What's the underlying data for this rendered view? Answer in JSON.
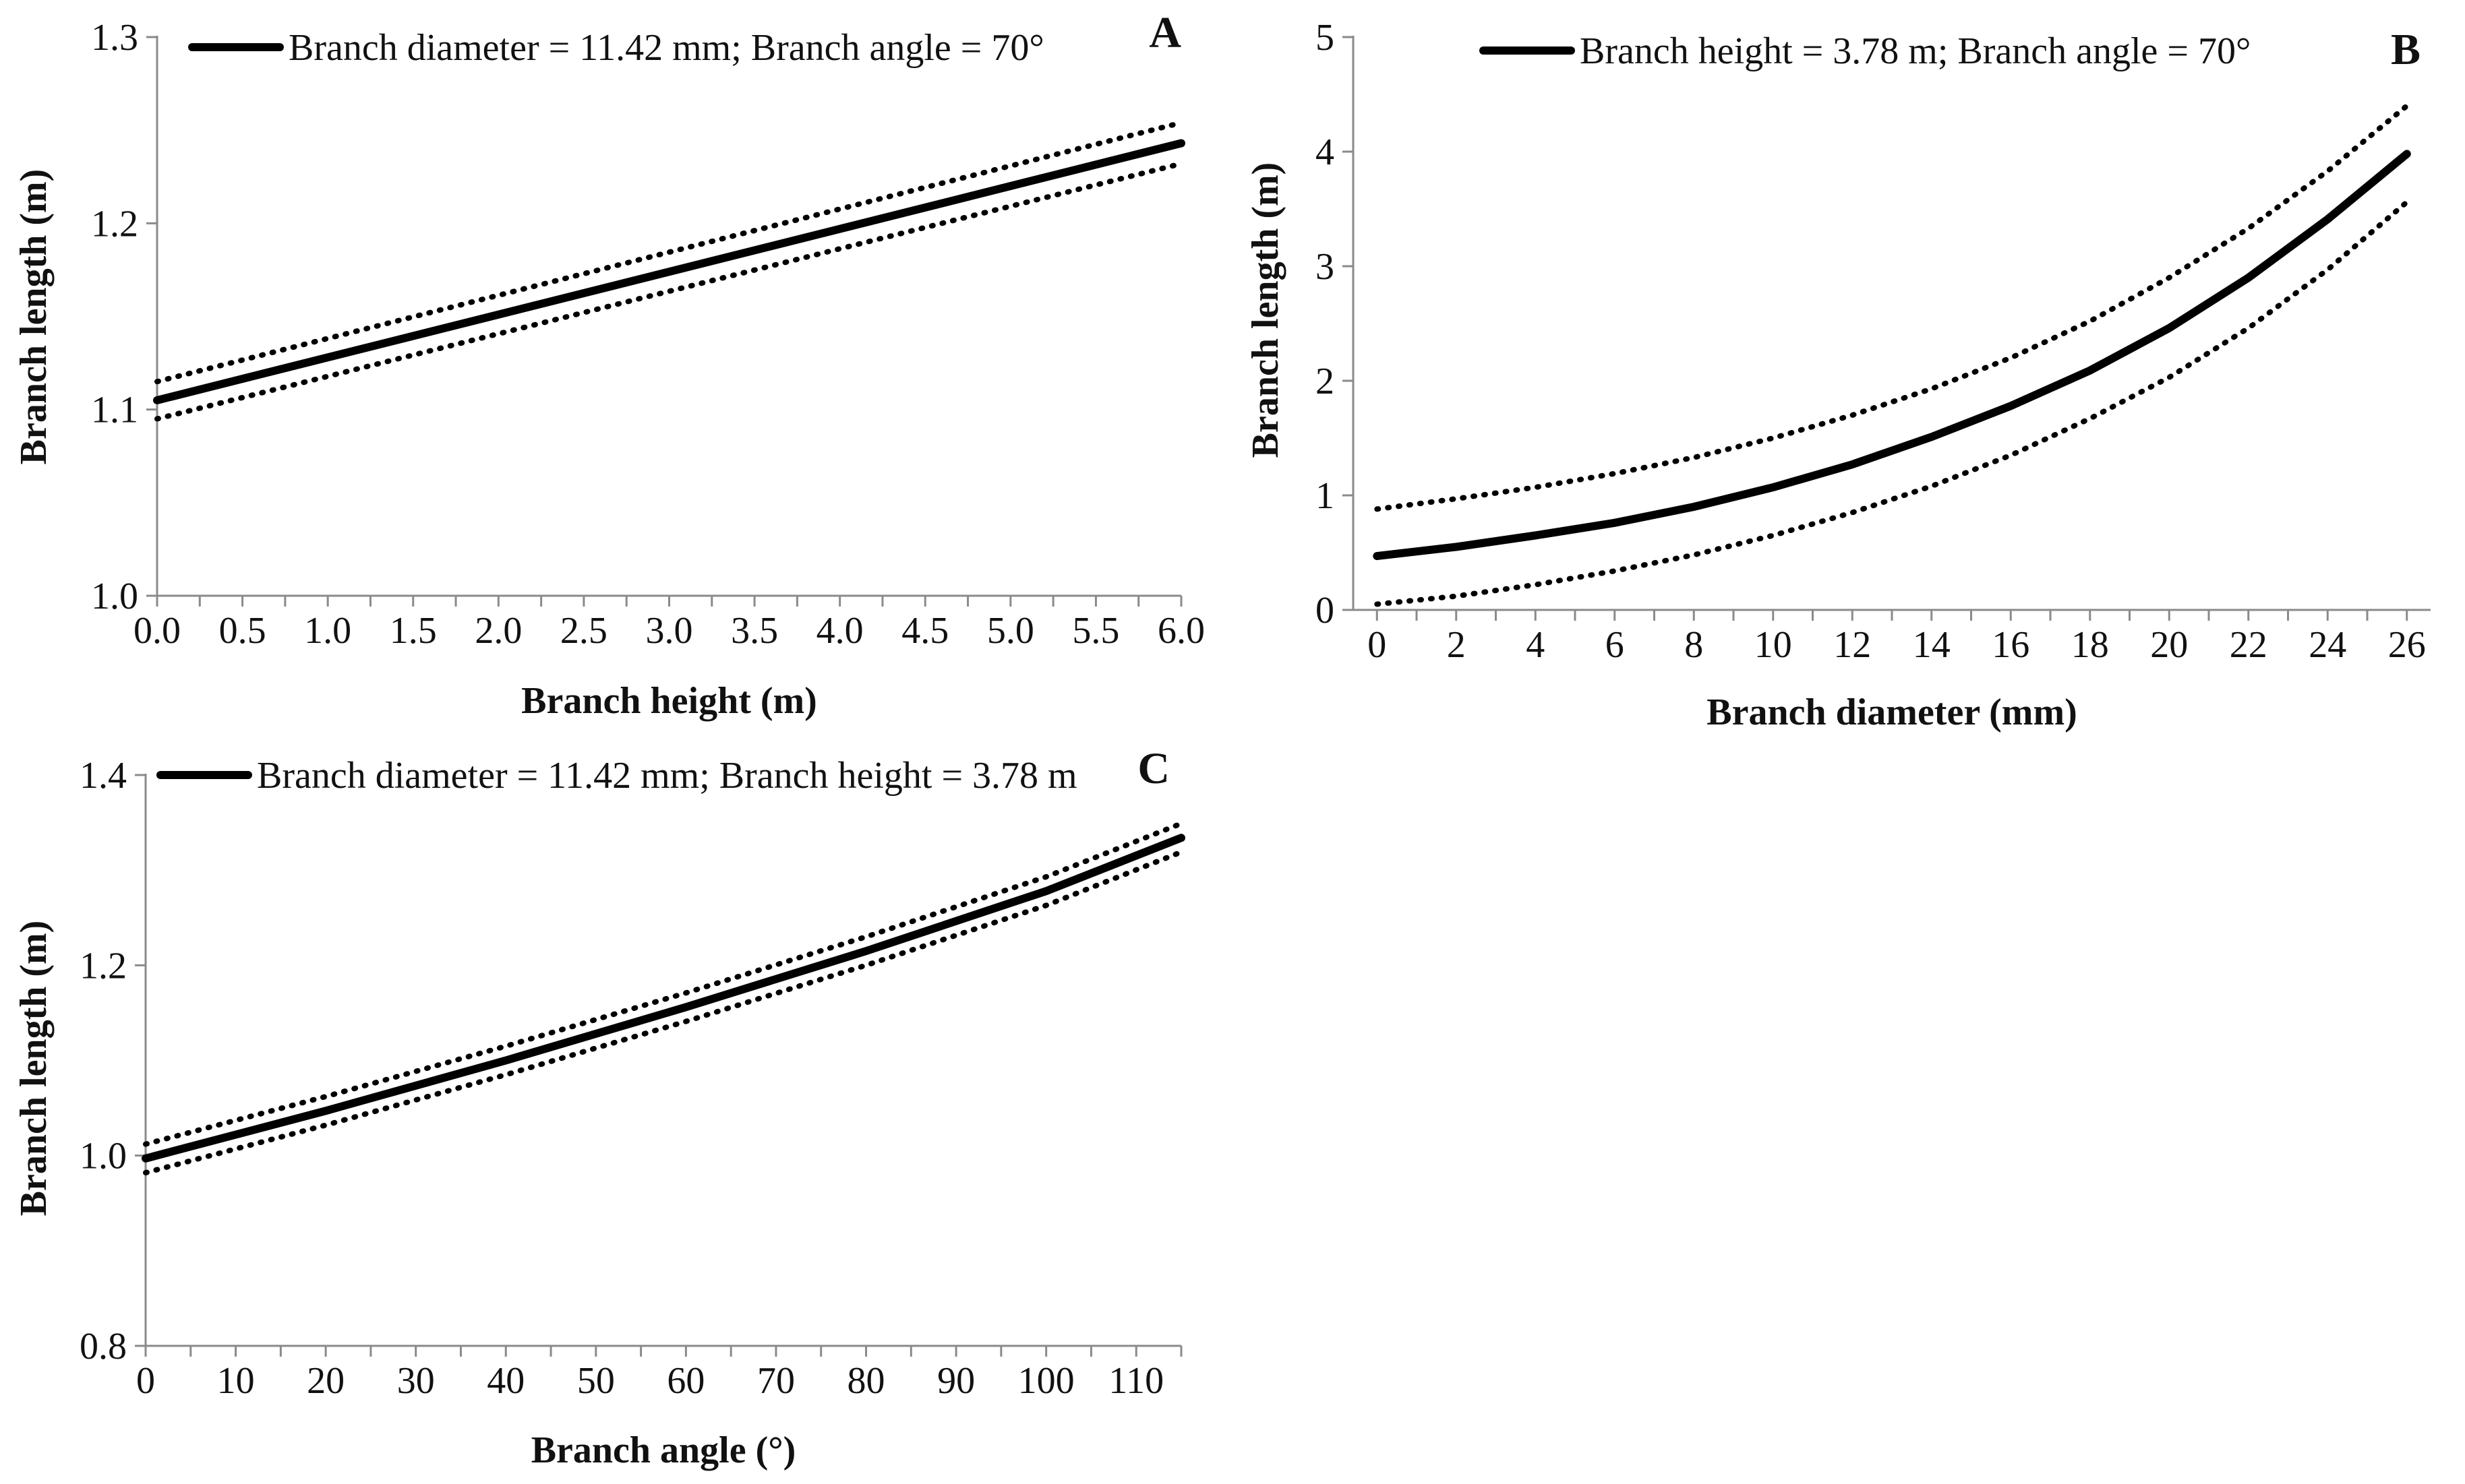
{
  "chart_data": [
    {
      "type": "line",
      "panel": "A",
      "legend": "Branch diameter = 11.42 mm; Branch angle = 70°",
      "xlabel": "Branch height (m)",
      "ylabel": "Branch length (m)",
      "xlim": [
        0,
        6
      ],
      "ylim": [
        1.0,
        1.3
      ],
      "xticks": [
        "0.0",
        "0.5",
        "1.0",
        "1.5",
        "2.0",
        "2.5",
        "3.0",
        "3.5",
        "4.0",
        "4.5",
        "5.0",
        "5.5",
        "6.0"
      ],
      "xtick_values": [
        0,
        0.5,
        1,
        1.5,
        2,
        2.5,
        3,
        3.5,
        4,
        4.5,
        5,
        5.5,
        6
      ],
      "minor_x_step": 0.25,
      "yticks": [
        "1.0",
        "1.1",
        "1.2",
        "1.3"
      ],
      "ytick_values": [
        1.0,
        1.1,
        1.2,
        1.3
      ],
      "series": [
        {
          "name": "prediction",
          "style": "solid",
          "x": [
            0,
            6
          ],
          "y": [
            1.105,
            1.243
          ]
        },
        {
          "name": "upper CI",
          "style": "dotted",
          "x": [
            0,
            6
          ],
          "y": [
            1.115,
            1.254
          ]
        },
        {
          "name": "lower CI",
          "style": "dotted",
          "x": [
            0,
            6
          ],
          "y": [
            1.095,
            1.232
          ]
        }
      ]
    },
    {
      "type": "line",
      "panel": "B",
      "legend": "Branch height = 3.78 m; Branch angle = 70°",
      "xlabel": "Branch diameter (mm)",
      "ylabel": "Branch length (m)",
      "xlim": [
        -0.6,
        26.6
      ],
      "ylim": [
        0,
        5
      ],
      "xticks": [
        "0",
        "2",
        "4",
        "6",
        "8",
        "10",
        "12",
        "14",
        "16",
        "18",
        "20",
        "22",
        "24",
        "26"
      ],
      "xtick_values": [
        0,
        2,
        4,
        6,
        8,
        10,
        12,
        14,
        16,
        18,
        20,
        22,
        24,
        26
      ],
      "minor_x_step": 1,
      "yticks": [
        "0",
        "1",
        "2",
        "3",
        "4",
        "5"
      ],
      "ytick_values": [
        0,
        1,
        2,
        3,
        4,
        5
      ],
      "series": [
        {
          "name": "prediction",
          "style": "solid",
          "x": [
            0,
            2,
            4,
            6,
            8,
            10,
            12,
            14,
            16,
            18,
            20,
            22,
            24,
            26
          ],
          "y": [
            0.47,
            0.55,
            0.65,
            0.76,
            0.9,
            1.07,
            1.27,
            1.51,
            1.78,
            2.09,
            2.46,
            2.9,
            3.41,
            3.98
          ]
        },
        {
          "name": "upper CI",
          "style": "dotted",
          "x": [
            0,
            2,
            4,
            6,
            8,
            10,
            12,
            14,
            16,
            18,
            20,
            22,
            24,
            26
          ],
          "y": [
            0.88,
            0.97,
            1.07,
            1.19,
            1.33,
            1.5,
            1.7,
            1.93,
            2.2,
            2.52,
            2.9,
            3.33,
            3.83,
            4.4
          ]
        },
        {
          "name": "lower CI",
          "style": "dotted",
          "x": [
            0,
            2,
            4,
            6,
            8,
            10,
            12,
            14,
            16,
            18,
            20,
            22,
            24,
            26
          ],
          "y": [
            0.05,
            0.12,
            0.22,
            0.34,
            0.48,
            0.65,
            0.85,
            1.08,
            1.35,
            1.67,
            2.03,
            2.46,
            2.97,
            3.56
          ]
        }
      ]
    },
    {
      "type": "line",
      "panel": "C",
      "legend": "Branch diameter = 11.42 mm; Branch height = 3.78 m",
      "xlabel": "Branch angle (°)",
      "ylabel": "Branch length (m)",
      "xlim": [
        0,
        115
      ],
      "ylim": [
        0.8,
        1.4
      ],
      "xticks": [
        "0",
        "10",
        "20",
        "30",
        "40",
        "50",
        "60",
        "70",
        "80",
        "90",
        "100",
        "110"
      ],
      "xtick_values": [
        0,
        10,
        20,
        30,
        40,
        50,
        60,
        70,
        80,
        90,
        100,
        110
      ],
      "minor_x_step": 5,
      "yticks": [
        "0.8",
        "1.0",
        "1.2",
        "1.4"
      ],
      "ytick_values": [
        0.8,
        1.0,
        1.2,
        1.4
      ],
      "series": [
        {
          "name": "prediction",
          "style": "solid",
          "x": [
            0,
            20,
            40,
            60,
            80,
            100,
            115
          ],
          "y": [
            0.997,
            1.047,
            1.1,
            1.156,
            1.215,
            1.278,
            1.334
          ]
        },
        {
          "name": "upper CI",
          "style": "dotted",
          "x": [
            0,
            20,
            40,
            60,
            80,
            100,
            115
          ],
          "y": [
            1.012,
            1.062,
            1.115,
            1.171,
            1.23,
            1.293,
            1.349
          ]
        },
        {
          "name": "lower CI",
          "style": "dotted",
          "x": [
            0,
            20,
            40,
            60,
            80,
            100,
            115
          ],
          "y": [
            0.982,
            1.032,
            1.085,
            1.141,
            1.2,
            1.263,
            1.319
          ]
        }
      ]
    }
  ]
}
